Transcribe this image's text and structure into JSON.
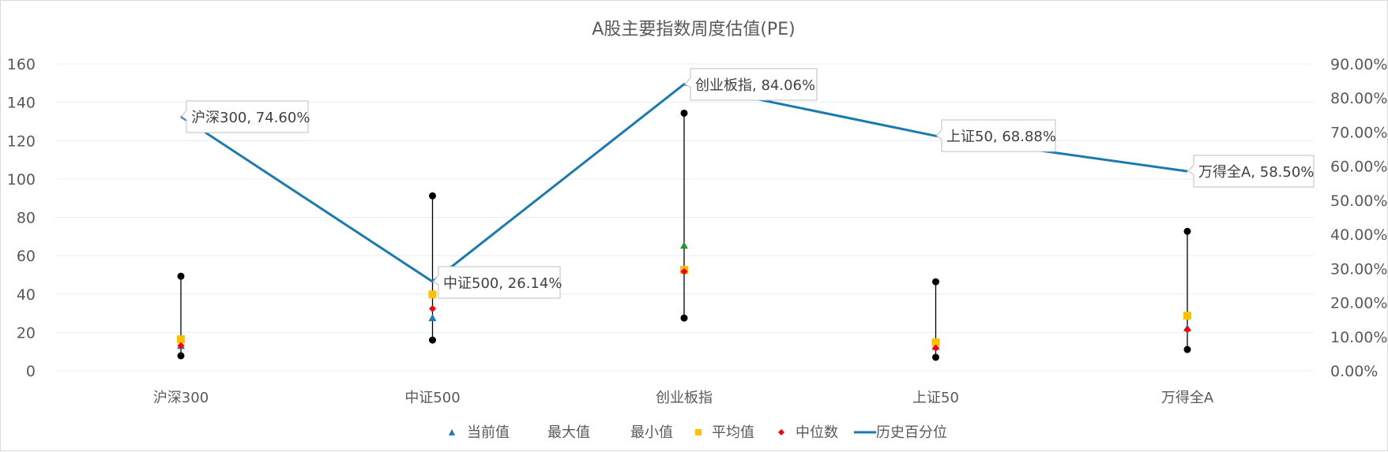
{
  "chart_data": {
    "type": "line",
    "title": "A股主要指数周度估值(PE)",
    "categories": [
      "沪深300",
      "中证500",
      "创业板指",
      "上证50",
      "万得全A"
    ],
    "left_axis": {
      "ylim": [
        0,
        160
      ],
      "ticks": [
        "0",
        "20",
        "40",
        "60",
        "80",
        "100",
        "120",
        "140",
        "160"
      ]
    },
    "right_axis": {
      "ylim": [
        0,
        0.9
      ],
      "ticks": [
        "0.00%",
        "10.00%",
        "20.00%",
        "30.00%",
        "40.00%",
        "50.00%",
        "60.00%",
        "70.00%",
        "80.00%",
        "90.00%"
      ]
    },
    "series": [
      {
        "name": "当前值",
        "marker": "triangle",
        "axis": "left",
        "values": [
          13.0,
          27.5,
          65.3,
          12.5,
          22.2
        ],
        "color_by_point": [
          "#1a7bb0",
          "#1a7bb0",
          "#1f9a2a",
          "#1a7bb0",
          "#1a7bb0"
        ]
      },
      {
        "name": "最大值",
        "marker": "circle",
        "axis": "left",
        "values": [
          49.3,
          91.2,
          134.3,
          46.4,
          72.7
        ],
        "color": "#000000"
      },
      {
        "name": "最小值",
        "marker": "circle",
        "axis": "left",
        "values": [
          7.8,
          16.0,
          27.5,
          7.0,
          11.1
        ],
        "color": "#000000"
      },
      {
        "name": "平均值",
        "marker": "square",
        "axis": "left",
        "values": [
          16.4,
          39.8,
          52.6,
          14.8,
          28.7
        ],
        "color": "#ffc000"
      },
      {
        "name": "中位数",
        "marker": "diamond",
        "axis": "left",
        "values": [
          13.1,
          32.4,
          51.7,
          11.9,
          21.4
        ],
        "color": "#ff0000"
      },
      {
        "name": "历史百分位",
        "marker": "line",
        "axis": "right",
        "values": [
          0.746,
          0.2614,
          0.8406,
          0.6888,
          0.585
        ],
        "color": "#1a7bb0"
      }
    ],
    "data_labels": [
      "沪深300, 74.60%",
      "中证500, 26.14%",
      "创业板指, 84.06%",
      "上证50, 68.88%",
      "万得全A, 58.50%"
    ],
    "legend": {
      "position": "bottom",
      "items": [
        "当前值",
        "最大值",
        "最小值",
        "平均值",
        "中位数",
        "历史百分位"
      ]
    },
    "grid": true,
    "xlabel": "",
    "ylabel": ""
  },
  "colors": {
    "line": "#1a7bb0",
    "mean": "#ffc000",
    "median": "#ff0000",
    "current": "#1a7bb0",
    "current_highlight": "#1f9a2a",
    "extreme": "#000000"
  }
}
